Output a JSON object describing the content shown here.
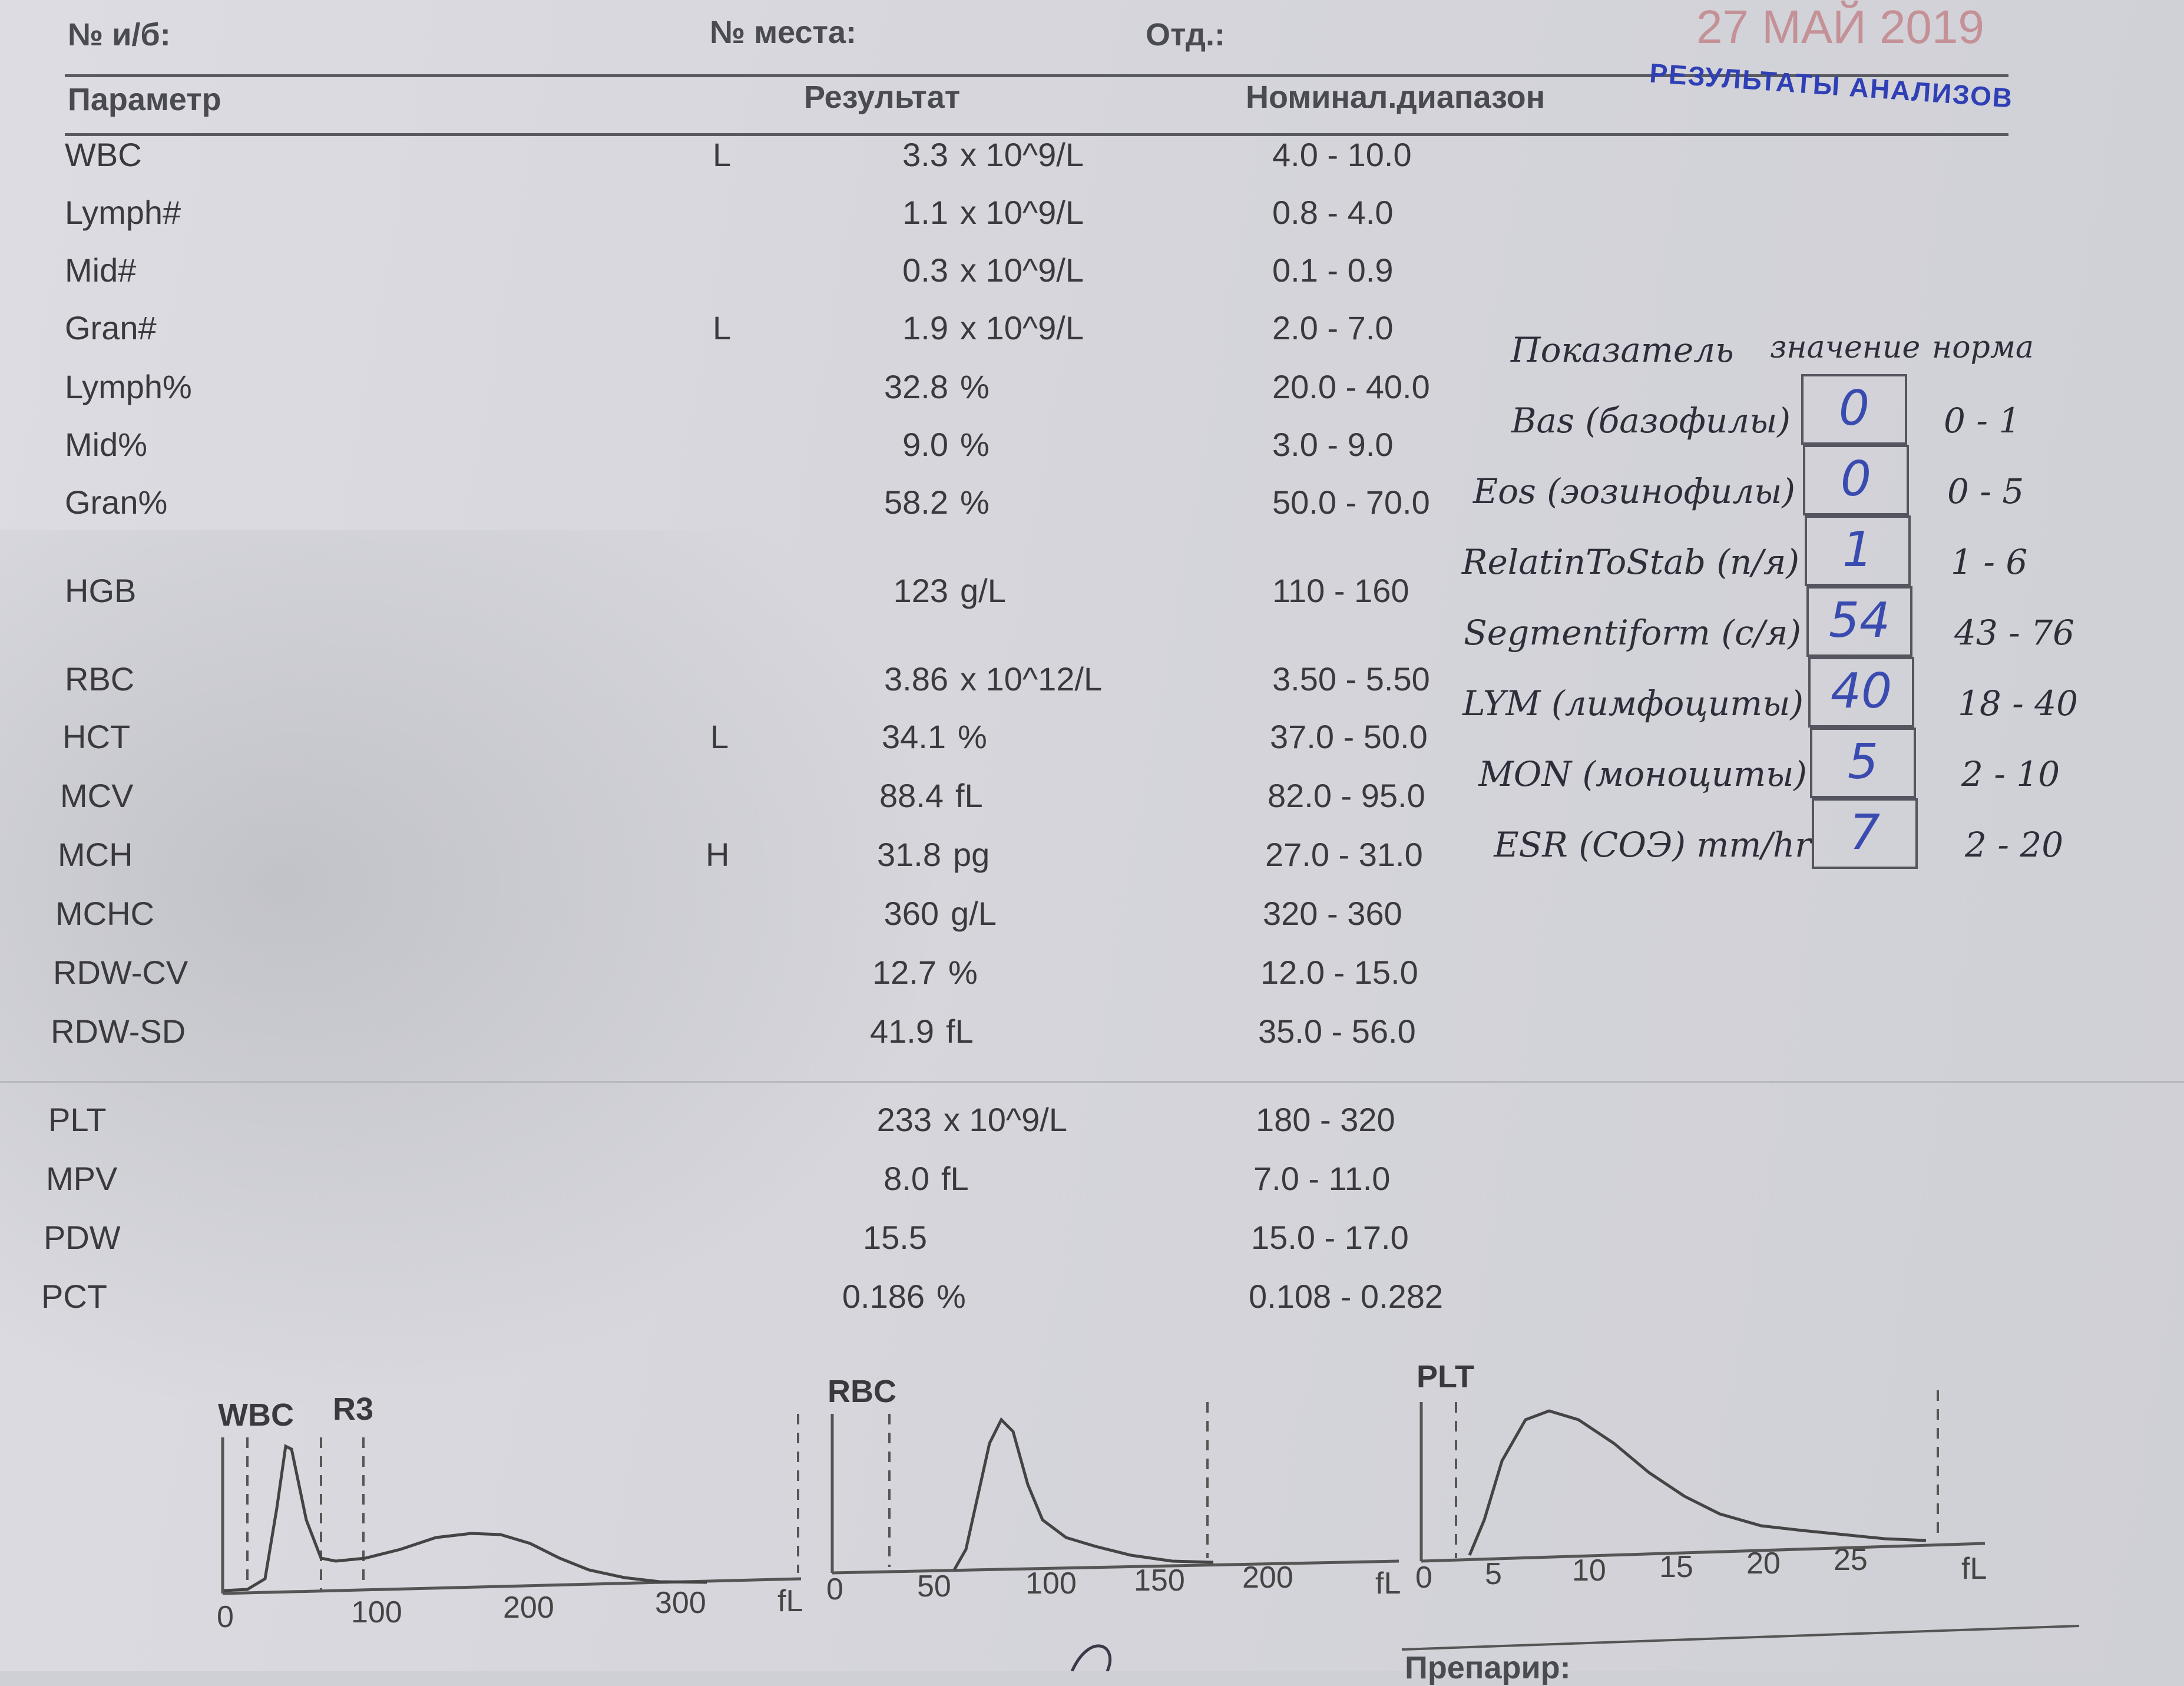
{
  "header": {
    "card_no_label": "№ и/б:",
    "place_no_label": "№ места:",
    "dept_label": "Отд.:",
    "date_stamp": "27 МАЙ 2019",
    "results_stamp": "РЕЗУЛЬТАТЫ АНАЛИЗОВ"
  },
  "table": {
    "col_param": "Параметр",
    "col_result": "Результат",
    "col_range": "Номинал.диапазон",
    "rows": [
      {
        "name": "WBC",
        "flag": "L",
        "value": "3.3",
        "unit": "x 10^9/L",
        "range": "4.0 - 10.0"
      },
      {
        "name": "Lymph#",
        "flag": "",
        "value": "1.1",
        "unit": "x 10^9/L",
        "range": "0.8 - 4.0"
      },
      {
        "name": "Mid#",
        "flag": "",
        "value": "0.3",
        "unit": "x 10^9/L",
        "range": "0.1 - 0.9"
      },
      {
        "name": "Gran#",
        "flag": "L",
        "value": "1.9",
        "unit": "x 10^9/L",
        "range": "2.0 - 7.0"
      },
      {
        "name": "Lymph%",
        "flag": "",
        "value": "32.8",
        "unit": "%",
        "range": "20.0 - 40.0"
      },
      {
        "name": "Mid%",
        "flag": "",
        "value": "9.0",
        "unit": "%",
        "range": "3.0 - 9.0"
      },
      {
        "name": "Gran%",
        "flag": "",
        "value": "58.2",
        "unit": "%",
        "range": "50.0 - 70.0"
      },
      {
        "name": "HGB",
        "flag": "",
        "value": "123",
        "unit": "g/L",
        "range": "110 - 160"
      },
      {
        "name": "RBC",
        "flag": "",
        "value": "3.86",
        "unit": "x 10^12/L",
        "range": "3.50 - 5.50"
      },
      {
        "name": "HCT",
        "flag": "L",
        "value": "34.1",
        "unit": "%",
        "range": "37.0 - 50.0"
      },
      {
        "name": "MCV",
        "flag": "",
        "value": "88.4",
        "unit": "fL",
        "range": "82.0 - 95.0"
      },
      {
        "name": "MCH",
        "flag": "H",
        "value": "31.8",
        "unit": "pg",
        "range": "27.0 - 31.0"
      },
      {
        "name": "MCHC",
        "flag": "",
        "value": "360",
        "unit": "g/L",
        "range": "320 - 360"
      },
      {
        "name": "RDW-CV",
        "flag": "",
        "value": "12.7",
        "unit": "%",
        "range": "12.0 - 15.0"
      },
      {
        "name": "RDW-SD",
        "flag": "",
        "value": "41.9",
        "unit": "fL",
        "range": "35.0 - 56.0"
      },
      {
        "name": "PLT",
        "flag": "",
        "value": "233",
        "unit": "x 10^9/L",
        "range": "180 - 320"
      },
      {
        "name": "MPV",
        "flag": "",
        "value": "8.0",
        "unit": "fL",
        "range": "7.0 - 11.0"
      },
      {
        "name": "PDW",
        "flag": "",
        "value": "15.5",
        "unit": "",
        "range": "15.0 - 17.0"
      },
      {
        "name": "PCT",
        "flag": "",
        "value": "0.186",
        "unit": "%",
        "range": "0.108 - 0.282"
      }
    ]
  },
  "manual": {
    "col_indicator": "Показатель",
    "col_value": "значение",
    "col_norm": "норма",
    "rows": [
      {
        "name": "Bas (базофилы)",
        "value": "0",
        "norm": "0 - 1"
      },
      {
        "name": "Eos (эозинофилы)",
        "value": "0",
        "norm": "0 - 5"
      },
      {
        "name": "RelatinToStab (п/я)",
        "value": "1",
        "norm": "1 - 6"
      },
      {
        "name": "Segmentiform (с/я)",
        "value": "54",
        "norm": "43 - 76"
      },
      {
        "name": "LYM (лимфоциты)",
        "value": "40",
        "norm": "18 - 40"
      },
      {
        "name": "MON (моноциты)",
        "value": "5",
        "norm": "2 - 10"
      },
      {
        "name": "ESR (СОЭ) mm/hr",
        "value": "7",
        "norm": "2 - 20"
      }
    ]
  },
  "histograms": {
    "wbc": {
      "title": "WBC",
      "marker": "R3",
      "unit": "fL",
      "ticks": [
        "0",
        "100",
        "200",
        "300"
      ]
    },
    "rbc": {
      "title": "RBC",
      "unit": "fL",
      "ticks": [
        "0",
        "50",
        "100",
        "150",
        "200"
      ]
    },
    "plt": {
      "title": "PLT",
      "unit": "fL",
      "ticks": [
        "0",
        "5",
        "10",
        "15",
        "20",
        "25"
      ]
    }
  },
  "footer": {
    "preparer_label": "Препарир:"
  }
}
